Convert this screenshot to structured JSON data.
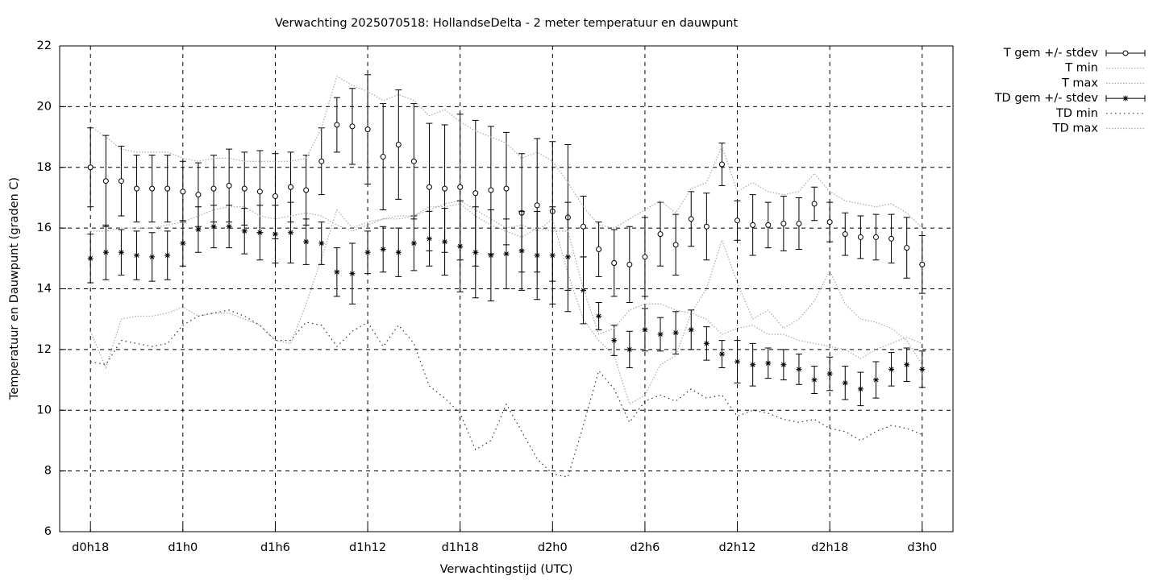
{
  "chart_data": {
    "type": "errorbar",
    "title": "Verwachting 2025070518: HollandseDelta - 2 meter temperatuur en dauwpunt",
    "xlabel": "Verwachtingstijd (UTC)",
    "ylabel": "Temperatuur en Dauwpunt (graden C)",
    "x": [
      18,
      19,
      20,
      21,
      22,
      23,
      24,
      25,
      26,
      27,
      28,
      29,
      30,
      31,
      32,
      33,
      34,
      35,
      36,
      37,
      38,
      39,
      40,
      41,
      42,
      43,
      44,
      45,
      46,
      47,
      48,
      49,
      50,
      51,
      52,
      53,
      54,
      55,
      56,
      57,
      58,
      59,
      60,
      61,
      62,
      63,
      64,
      65,
      66,
      67,
      68,
      69,
      70,
      71,
      72
    ],
    "xlim": [
      16,
      74
    ],
    "xticks": [
      {
        "value": 18,
        "label": "d0h18"
      },
      {
        "value": 24,
        "label": "d1h0"
      },
      {
        "value": 30,
        "label": "d1h6"
      },
      {
        "value": 36,
        "label": "d1h12"
      },
      {
        "value": 42,
        "label": "d1h18"
      },
      {
        "value": 48,
        "label": "d2h0"
      },
      {
        "value": 54,
        "label": "d2h6"
      },
      {
        "value": 60,
        "label": "d2h12"
      },
      {
        "value": 66,
        "label": "d2h18"
      },
      {
        "value": 72,
        "label": "d3h0"
      }
    ],
    "ylim": [
      6,
      22
    ],
    "yticks": [
      6,
      8,
      10,
      12,
      14,
      16,
      18,
      20,
      22
    ],
    "grid": true,
    "legend": "outside-top-right",
    "series": [
      {
        "name": "T gem +/- stdev",
        "color": "#000000",
        "style": "errorbars",
        "marker": "circle",
        "values": [
          18.0,
          17.55,
          17.55,
          17.3,
          17.3,
          17.3,
          17.2,
          17.1,
          17.3,
          17.4,
          17.3,
          17.2,
          17.05,
          17.35,
          17.25,
          18.2,
          19.4,
          19.35,
          19.25,
          18.35,
          18.75,
          18.2,
          17.35,
          17.3,
          17.35,
          17.15,
          17.25,
          17.3,
          16.5,
          16.75,
          16.55,
          16.35,
          16.05,
          15.3,
          14.85,
          14.8,
          15.05,
          15.8,
          15.45,
          16.3,
          16.05,
          18.1,
          16.25,
          16.1,
          16.1,
          16.15,
          16.15,
          16.8,
          16.2,
          15.8,
          15.7,
          15.7,
          15.65,
          15.35,
          14.8
        ],
        "errors": [
          1.3,
          1.5,
          1.15,
          1.1,
          1.1,
          1.1,
          1.0,
          1.05,
          1.1,
          1.2,
          1.2,
          1.35,
          1.4,
          1.15,
          1.15,
          1.1,
          0.9,
          1.25,
          1.8,
          1.75,
          1.8,
          1.9,
          2.1,
          2.1,
          2.4,
          2.4,
          2.1,
          1.85,
          1.95,
          2.2,
          2.3,
          2.4,
          1.0,
          0.9,
          1.1,
          1.25,
          1.3,
          1.05,
          1.0,
          0.9,
          1.1,
          0.7,
          0.65,
          1.0,
          0.75,
          0.9,
          0.85,
          0.55,
          0.65,
          0.7,
          0.7,
          0.75,
          0.8,
          1.0,
          0.95
        ]
      },
      {
        "name": "T min",
        "color": "#aaaaaa",
        "style": "dotted",
        "values": [
          12.6,
          11.4,
          13.0,
          13.1,
          13.1,
          13.2,
          13.4,
          13.1,
          13.2,
          13.2,
          13.0,
          12.8,
          12.3,
          12.2,
          13.5,
          15.0,
          16.6,
          16.0,
          16.2,
          16.3,
          16.4,
          16.4,
          16.6,
          16.8,
          16.9,
          16.6,
          16.3,
          16.0,
          16.1,
          15.9,
          16.3,
          14.5,
          13.0,
          12.3,
          11.8,
          10.2,
          10.5,
          11.5,
          11.8,
          13.2,
          14.0,
          15.6,
          14.2,
          13.0,
          13.3,
          12.7,
          13.0,
          13.6,
          14.6,
          13.5,
          13.0,
          12.9,
          12.7,
          12.3,
          11.5
        ]
      },
      {
        "name": "T max",
        "color": "#aaaaaa",
        "style": "dotted",
        "values": [
          19.35,
          19.0,
          18.6,
          18.5,
          18.5,
          18.5,
          18.3,
          18.2,
          18.3,
          18.3,
          18.2,
          18.2,
          18.2,
          18.2,
          18.3,
          19.3,
          21.0,
          20.7,
          20.5,
          20.2,
          20.4,
          20.2,
          19.7,
          19.9,
          19.5,
          19.2,
          19.0,
          18.8,
          18.3,
          18.5,
          18.2,
          17.5,
          16.7,
          16.1,
          16.0,
          16.3,
          16.6,
          16.9,
          16.5,
          17.3,
          17.5,
          18.7,
          17.2,
          17.5,
          17.2,
          17.1,
          17.2,
          17.8,
          17.2,
          16.9,
          16.8,
          16.7,
          16.8,
          16.5,
          16.0
        ]
      },
      {
        "name": "TD gem +/- stdev",
        "color": "#000000",
        "style": "errorbars",
        "marker": "star",
        "values": [
          15.0,
          15.2,
          15.2,
          15.1,
          15.05,
          15.1,
          15.5,
          15.95,
          16.05,
          16.05,
          15.9,
          15.85,
          15.8,
          15.85,
          15.55,
          15.5,
          14.55,
          14.5,
          15.2,
          15.3,
          15.2,
          15.5,
          15.65,
          15.55,
          15.4,
          15.2,
          15.1,
          15.15,
          15.25,
          15.1,
          15.1,
          15.05,
          13.95,
          13.1,
          12.3,
          12.0,
          12.65,
          12.5,
          12.55,
          12.65,
          12.2,
          11.85,
          11.6,
          11.5,
          11.55,
          11.5,
          11.35,
          11.0,
          11.2,
          10.9,
          10.7,
          11.0,
          11.35,
          11.5,
          11.35
        ],
        "errors": [
          0.8,
          0.9,
          0.75,
          0.8,
          0.8,
          0.8,
          0.75,
          0.75,
          0.7,
          0.7,
          0.75,
          0.9,
          0.95,
          1.0,
          0.75,
          0.7,
          0.8,
          1.0,
          0.7,
          0.75,
          0.8,
          0.9,
          0.9,
          1.1,
          1.5,
          1.5,
          1.5,
          1.15,
          1.3,
          1.45,
          1.6,
          1.8,
          1.1,
          0.45,
          0.5,
          0.6,
          0.7,
          0.55,
          0.7,
          0.65,
          0.55,
          0.45,
          0.7,
          0.7,
          0.5,
          0.5,
          0.5,
          0.45,
          0.55,
          0.55,
          0.55,
          0.6,
          0.55,
          0.55,
          0.6
        ]
      },
      {
        "name": "TD min",
        "color": "#333333",
        "style": "dotted-wide",
        "values": [
          11.6,
          11.5,
          12.3,
          12.2,
          12.1,
          12.2,
          12.8,
          13.1,
          13.2,
          13.3,
          13.1,
          12.8,
          12.3,
          12.3,
          12.9,
          12.8,
          12.1,
          12.6,
          12.9,
          12.1,
          12.8,
          12.2,
          10.8,
          10.4,
          9.9,
          8.7,
          9.0,
          10.2,
          9.3,
          8.4,
          7.9,
          7.8,
          9.5,
          11.3,
          10.7,
          9.6,
          10.3,
          10.5,
          10.3,
          10.7,
          10.4,
          10.5,
          9.8,
          10.0,
          9.9,
          9.7,
          9.6,
          9.7,
          9.4,
          9.3,
          9.0,
          9.3,
          9.5,
          9.4,
          9.2
        ]
      },
      {
        "name": "TD max",
        "color": "#aaaaaa",
        "style": "dotted",
        "values": [
          15.9,
          15.9,
          16.0,
          16.0,
          16.0,
          16.1,
          16.2,
          16.4,
          16.6,
          16.7,
          16.7,
          16.4,
          16.3,
          16.4,
          16.5,
          16.4,
          16.1,
          15.9,
          16.1,
          16.3,
          16.3,
          16.4,
          16.7,
          16.7,
          16.8,
          16.4,
          16.1,
          15.9,
          15.7,
          16.0,
          15.9,
          15.9,
          14.0,
          12.5,
          12.7,
          13.3,
          13.5,
          13.5,
          13.3,
          13.2,
          13.0,
          12.5,
          12.7,
          12.8,
          12.5,
          12.5,
          12.3,
          12.2,
          12.1,
          12.0,
          11.7,
          12.0,
          12.2,
          12.4,
          12.2
        ]
      }
    ]
  }
}
